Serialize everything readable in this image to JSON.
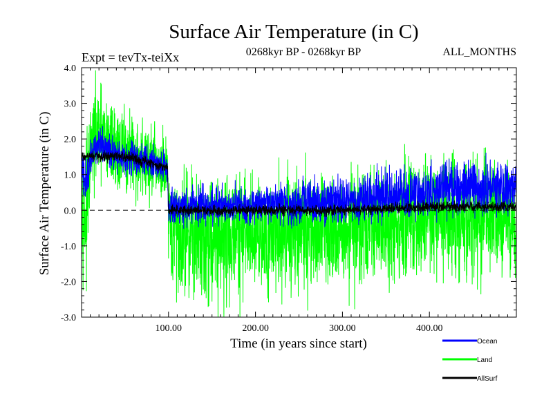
{
  "chart_data": {
    "type": "line",
    "title": "Surface Air Temperature (in C)",
    "subtitle_left": "Expt = tevTx-teiXx",
    "subtitle_center": "0268kyr BP - 0268kyr BP",
    "subtitle_right": "ALL_MONTHS",
    "xlabel": "Time (in years since start)",
    "ylabel": "Surface Air Temperature (in C)",
    "xlim": [
      0,
      500
    ],
    "ylim": [
      -3.0,
      4.0
    ],
    "x_ticks": [
      100,
      200,
      300,
      400
    ],
    "x_tick_labels": [
      "100.00",
      "200.00",
      "300.00",
      "400.00"
    ],
    "y_ticks": [
      -3,
      -2,
      -1,
      0,
      1,
      2,
      3,
      4
    ],
    "y_tick_labels": [
      "-3.0",
      "-2.0",
      "-1.0",
      "0.0",
      "1.0",
      "2.0",
      "3.0",
      "4.0"
    ],
    "reference_line": 0.0,
    "legend_position": "bottom-right",
    "series": [
      {
        "name": "Land",
        "color": "#00ff00",
        "x": [
          0,
          5,
          10,
          15,
          20,
          30,
          40,
          50,
          60,
          70,
          80,
          90,
          99,
          100,
          110,
          130,
          150,
          170,
          200,
          220,
          250,
          270,
          300,
          320,
          350,
          370,
          400,
          420,
          450,
          470,
          500
        ],
        "mean": [
          0.3,
          -0.3,
          1.5,
          2.0,
          2.1,
          1.9,
          1.7,
          1.6,
          1.5,
          1.4,
          1.3,
          1.2,
          1.0,
          -0.7,
          -0.6,
          -0.65,
          -0.7,
          -0.7,
          -0.6,
          -0.6,
          -0.55,
          -0.55,
          -0.5,
          -0.5,
          -0.4,
          -0.35,
          -0.3,
          -0.3,
          -0.25,
          -0.2,
          -0.2
        ],
        "spread": [
          1.0,
          1.2,
          0.8,
          0.9,
          0.9,
          0.8,
          0.8,
          0.8,
          0.8,
          0.7,
          0.7,
          0.7,
          0.7,
          1.0,
          1.1,
          1.1,
          1.2,
          1.2,
          1.1,
          1.1,
          1.1,
          1.1,
          1.1,
          1.1,
          1.1,
          1.1,
          1.1,
          1.1,
          1.1,
          1.1,
          1.1
        ]
      },
      {
        "name": "Ocean",
        "color": "#0000ff",
        "x": [
          0,
          5,
          10,
          15,
          20,
          30,
          40,
          50,
          60,
          70,
          80,
          90,
          99,
          100,
          110,
          130,
          150,
          170,
          200,
          220,
          250,
          270,
          300,
          320,
          350,
          370,
          400,
          420,
          450,
          470,
          500
        ],
        "mean": [
          1.1,
          0.7,
          1.5,
          1.8,
          1.8,
          1.7,
          1.6,
          1.5,
          1.5,
          1.4,
          1.35,
          1.3,
          1.2,
          0.05,
          0.1,
          0.1,
          0.15,
          0.15,
          0.1,
          0.15,
          0.2,
          0.25,
          0.25,
          0.3,
          0.45,
          0.45,
          0.5,
          0.55,
          0.6,
          0.6,
          0.65
        ],
        "spread": [
          0.4,
          0.5,
          0.3,
          0.3,
          0.3,
          0.3,
          0.3,
          0.3,
          0.3,
          0.3,
          0.3,
          0.3,
          0.3,
          0.35,
          0.35,
          0.35,
          0.35,
          0.35,
          0.35,
          0.35,
          0.4,
          0.4,
          0.4,
          0.4,
          0.45,
          0.45,
          0.45,
          0.5,
          0.5,
          0.5,
          0.5
        ]
      },
      {
        "name": "AllSurf",
        "color": "#000000",
        "x": [
          0,
          50,
          99,
          100,
          200,
          300,
          400,
          500
        ],
        "mean": [
          1.5,
          1.5,
          1.2,
          0.0,
          0.0,
          0.0,
          0.1,
          0.1
        ],
        "spread": [
          0.1,
          0.1,
          0.1,
          0.1,
          0.1,
          0.1,
          0.1,
          0.1
        ]
      }
    ]
  }
}
